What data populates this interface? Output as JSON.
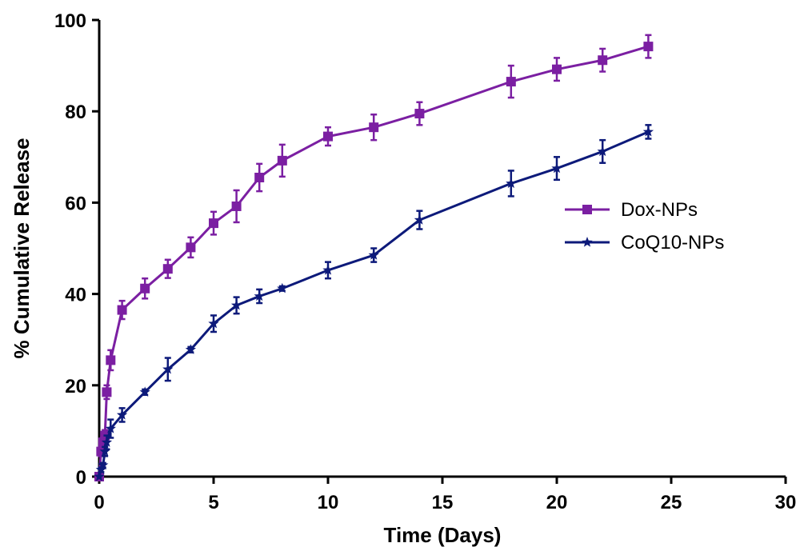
{
  "chart_data": {
    "type": "line",
    "title": "",
    "xlabel": "Time (Days)",
    "ylabel": "% Cumulative Release",
    "xlim": [
      0,
      30
    ],
    "ylim": [
      0,
      100
    ],
    "xticks": [
      0,
      5,
      10,
      15,
      20,
      25,
      30
    ],
    "yticks": [
      0,
      20,
      40,
      60,
      80,
      100
    ],
    "grid": false,
    "legend": "right",
    "series": [
      {
        "name": "Dox-NPs",
        "color": "#7B1FA2",
        "marker": "square",
        "x": [
          0,
          0.083,
          0.167,
          0.25,
          0.33,
          0.5,
          1,
          2,
          3,
          4,
          5,
          6,
          7,
          8,
          10,
          12,
          14,
          18,
          20,
          22,
          24
        ],
        "y": [
          0,
          5.5,
          7.5,
          9,
          18.5,
          25.5,
          36.5,
          41.2,
          45.5,
          50.2,
          55.5,
          59.2,
          65.5,
          69.2,
          74.5,
          76.5,
          79.5,
          86.5,
          89.2,
          91.2,
          94.2
        ],
        "error": [
          0,
          1,
          1,
          1.2,
          1.5,
          2.2,
          2,
          2.2,
          2,
          2.2,
          2.5,
          3.5,
          3,
          3.5,
          2,
          2.8,
          2.5,
          3.5,
          2.5,
          2.5,
          2.5
        ]
      },
      {
        "name": "CoQ10-NPs",
        "color": "#0D1A7A",
        "marker": "star",
        "x": [
          0,
          0.083,
          0.167,
          0.25,
          0.33,
          0.5,
          1,
          2,
          3,
          4,
          5,
          6,
          7,
          8,
          10,
          12,
          14,
          18,
          20,
          22,
          24
        ],
        "y": [
          0,
          1.5,
          2.5,
          5.5,
          7.5,
          10.5,
          13.5,
          18.5,
          23.5,
          27.8,
          33.5,
          37.5,
          39.5,
          41.2,
          45.2,
          48.5,
          56.2,
          64.2,
          67.5,
          71.2,
          75.5
        ],
        "error": [
          0,
          0.5,
          0.5,
          1,
          1.5,
          2,
          1.5,
          0.6,
          2.5,
          0.6,
          1.8,
          1.8,
          1.5,
          0.5,
          1.8,
          1.5,
          2,
          2.8,
          2.5,
          2.5,
          1.5
        ]
      }
    ]
  }
}
